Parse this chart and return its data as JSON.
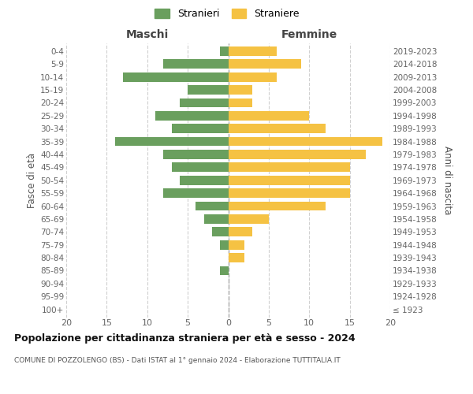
{
  "age_groups": [
    "100+",
    "95-99",
    "90-94",
    "85-89",
    "80-84",
    "75-79",
    "70-74",
    "65-69",
    "60-64",
    "55-59",
    "50-54",
    "45-49",
    "40-44",
    "35-39",
    "30-34",
    "25-29",
    "20-24",
    "15-19",
    "10-14",
    "5-9",
    "0-4"
  ],
  "birth_years": [
    "≤ 1923",
    "1924-1928",
    "1929-1933",
    "1934-1938",
    "1939-1943",
    "1944-1948",
    "1949-1953",
    "1954-1958",
    "1959-1963",
    "1964-1968",
    "1969-1973",
    "1974-1978",
    "1979-1983",
    "1984-1988",
    "1989-1993",
    "1994-1998",
    "1999-2003",
    "2004-2008",
    "2009-2013",
    "2014-2018",
    "2019-2023"
  ],
  "males": [
    0,
    0,
    0,
    1,
    0,
    1,
    2,
    3,
    4,
    8,
    6,
    7,
    8,
    14,
    7,
    9,
    6,
    5,
    13,
    8,
    1
  ],
  "females": [
    0,
    0,
    0,
    0,
    2,
    2,
    3,
    5,
    12,
    15,
    15,
    15,
    17,
    19,
    12,
    10,
    3,
    3,
    6,
    9,
    6
  ],
  "male_color": "#6a9f5e",
  "female_color": "#f5c243",
  "background_color": "#ffffff",
  "grid_color": "#d0d0d0",
  "title": "Popolazione per cittadinanza straniera per età e sesso - 2024",
  "subtitle": "COMUNE DI POZZOLENGO (BS) - Dati ISTAT al 1° gennaio 2024 - Elaborazione TUTTITALIA.IT",
  "header_left": "Maschi",
  "header_right": "Femmine",
  "ylabel_left": "Fasce di età",
  "ylabel_right": "Anni di nascita",
  "xlim": 20,
  "legend_male": "Stranieri",
  "legend_female": "Straniere"
}
